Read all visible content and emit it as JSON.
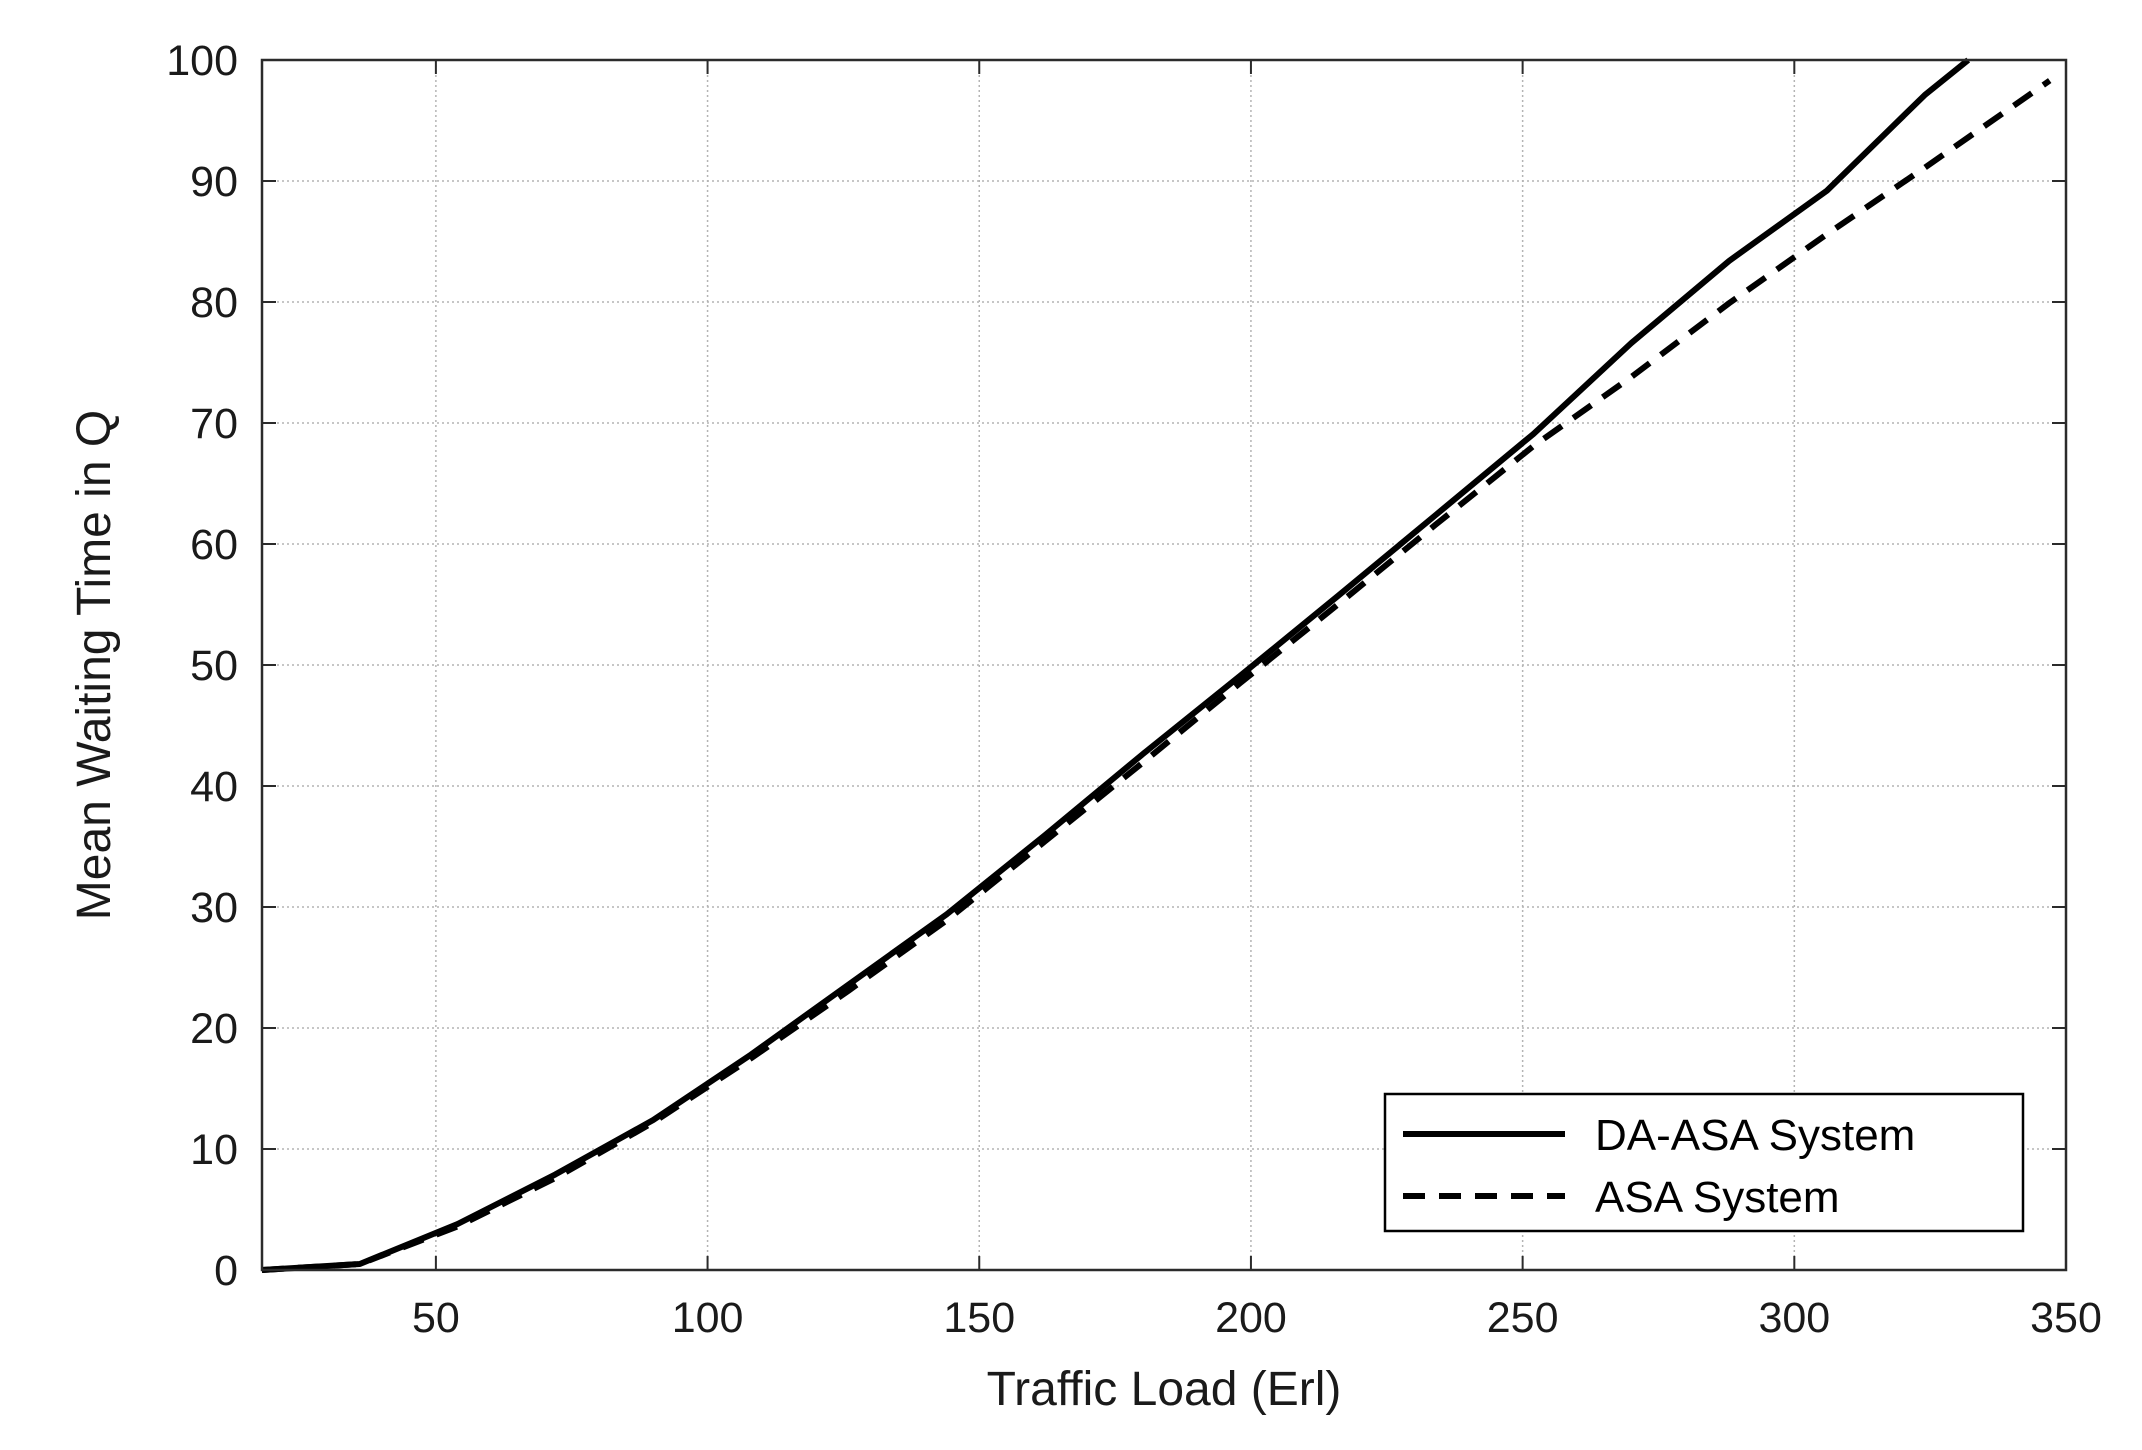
{
  "chart_data": {
    "type": "line",
    "title": "",
    "xlabel": "Traffic Load (Erl)",
    "ylabel": "Mean Waiting Time in Q",
    "xlim": [
      18,
      350
    ],
    "ylim": [
      0,
      100
    ],
    "xticks": [
      50,
      100,
      150,
      200,
      250,
      300,
      350
    ],
    "yticks": [
      0,
      10,
      20,
      30,
      40,
      50,
      60,
      70,
      80,
      90,
      100
    ],
    "grid": true,
    "legend": "bottom-right",
    "series": [
      {
        "name": "DA-ASA System",
        "style": "solid",
        "color": "#000000",
        "x": [
          18,
          36,
          54,
          72,
          90,
          108,
          126,
          144,
          162,
          180,
          198,
          216,
          234,
          252,
          270,
          288,
          306,
          324,
          332
        ],
        "y": [
          0,
          0.5,
          3.8,
          7.9,
          12.4,
          17.8,
          23.6,
          29.4,
          35.9,
          42.6,
          49.1,
          55.7,
          62.4,
          69.1,
          76.6,
          83.4,
          89.2,
          97.1,
          100
        ]
      },
      {
        "name": "ASA System",
        "style": "dashed",
        "color": "#000000",
        "x": [
          18,
          36,
          54,
          72,
          90,
          108,
          126,
          144,
          162,
          180,
          198,
          216,
          234,
          252,
          270,
          288,
          306,
          324,
          347
        ],
        "y": [
          0,
          0.5,
          3.6,
          7.6,
          12.2,
          17.5,
          23.1,
          28.9,
          35.4,
          41.9,
          48.5,
          55.0,
          61.6,
          68.1,
          73.8,
          79.9,
          85.6,
          91.1,
          98.3
        ]
      }
    ]
  }
}
